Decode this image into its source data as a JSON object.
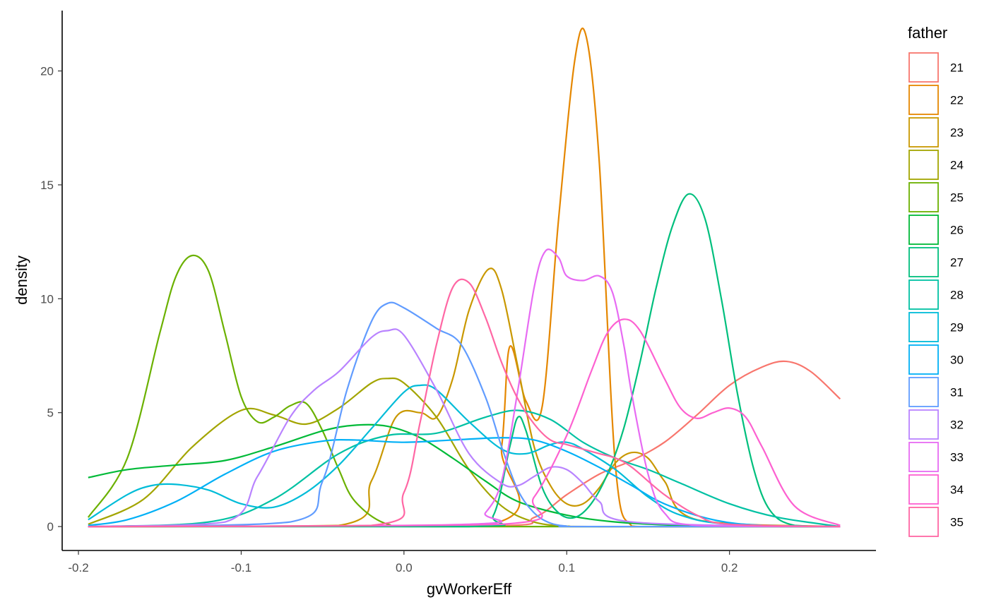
{
  "chart_data": {
    "type": "line",
    "title": "",
    "xlabel": "gvWorkerEff",
    "ylabel": "density",
    "xlim": [
      -0.21,
      0.29
    ],
    "ylim": [
      -1.05,
      22.65
    ],
    "x_ticks": [
      -0.2,
      -0.1,
      0.0,
      0.1,
      0.2
    ],
    "x_tick_labels": [
      "-0.2",
      "-0.1",
      "0.0",
      "0.1",
      "0.2"
    ],
    "y_ticks": [
      0,
      5,
      10,
      15,
      20
    ],
    "y_tick_labels": [
      "0",
      "5",
      "10",
      "15",
      "20"
    ],
    "grid": false,
    "legend": {
      "title": "father",
      "position": "right"
    },
    "series": [
      {
        "name": "21",
        "color": "#F8766D",
        "x": [
          -0.194,
          0.05,
          0.08,
          0.1,
          0.12,
          0.14,
          0.16,
          0.18,
          0.2,
          0.22,
          0.235,
          0.25,
          0.268
        ],
        "y": [
          0,
          0.02,
          0.4,
          1.4,
          2.3,
          2.9,
          3.7,
          4.9,
          6.2,
          7.0,
          7.25,
          6.8,
          5.6
        ]
      },
      {
        "name": "22",
        "color": "#E58700",
        "x": [
          -0.194,
          0.05,
          0.06,
          0.065,
          0.075,
          0.085,
          0.095,
          0.105,
          0.112,
          0.12,
          0.13,
          0.14,
          0.16,
          0.268
        ],
        "y": [
          0,
          0.05,
          3.5,
          7.9,
          5.5,
          5.3,
          13.5,
          20.5,
          21.5,
          16.0,
          2.6,
          0.02,
          0,
          0
        ]
      },
      {
        "name": "23",
        "color": "#C99800",
        "x": [
          -0.194,
          -0.04,
          -0.02,
          -0.005,
          0.01,
          0.02,
          0.03,
          0.04,
          0.052,
          0.06,
          0.07,
          0.08,
          0.09,
          0.1,
          0.11,
          0.12,
          0.13,
          0.14,
          0.15,
          0.16,
          0.18,
          0.268
        ],
        "y": [
          0,
          0.05,
          2.0,
          4.8,
          5.0,
          4.8,
          6.5,
          9.5,
          11.3,
          10.4,
          7.0,
          3.5,
          1.8,
          1.0,
          1.0,
          1.7,
          2.8,
          3.25,
          3.0,
          2.0,
          0.3,
          0
        ]
      },
      {
        "name": "24",
        "color": "#A3A500",
        "x": [
          -0.194,
          -0.16,
          -0.13,
          -0.1,
          -0.08,
          -0.06,
          -0.04,
          -0.02,
          -0.01,
          0,
          0.02,
          0.04,
          0.06,
          0.08,
          0.1,
          0.12,
          0.268
        ],
        "y": [
          0.1,
          1.2,
          3.5,
          5.1,
          4.9,
          4.5,
          5.2,
          6.3,
          6.5,
          6.3,
          4.8,
          2.5,
          0.9,
          0.2,
          0.02,
          0,
          0
        ]
      },
      {
        "name": "25",
        "color": "#6BB100",
        "x": [
          -0.194,
          -0.17,
          -0.15,
          -0.14,
          -0.13,
          -0.12,
          -0.11,
          -0.1,
          -0.09,
          -0.08,
          -0.07,
          -0.06,
          -0.05,
          -0.04,
          -0.03,
          -0.01,
          0.02,
          0.268
        ],
        "y": [
          0.4,
          3.0,
          8.5,
          11.0,
          11.9,
          11.2,
          8.5,
          5.7,
          4.6,
          4.8,
          5.3,
          5.4,
          4.2,
          2.5,
          1.1,
          0.1,
          0,
          0
        ]
      },
      {
        "name": "26",
        "color": "#00BA38",
        "x": [
          -0.194,
          -0.17,
          -0.14,
          -0.11,
          -0.08,
          -0.05,
          -0.03,
          -0.01,
          0.01,
          0.03,
          0.05,
          0.07,
          0.1,
          0.13,
          0.17,
          0.22,
          0.268
        ],
        "y": [
          2.15,
          2.5,
          2.7,
          2.9,
          3.5,
          4.2,
          4.45,
          4.4,
          3.9,
          3.0,
          2.0,
          1.1,
          0.5,
          0.2,
          0.05,
          0.01,
          0
        ]
      },
      {
        "name": "27",
        "color": "#00BF7D",
        "x": [
          -0.194,
          0.04,
          0.055,
          0.065,
          0.07,
          0.075,
          0.085,
          0.095,
          0.105,
          0.115,
          0.125,
          0.135,
          0.145,
          0.155,
          0.165,
          0.175,
          0.185,
          0.195,
          0.205,
          0.215,
          0.225,
          0.24,
          0.268
        ],
        "y": [
          0,
          0,
          0.5,
          3.5,
          4.8,
          4.2,
          1.7,
          0.6,
          0.4,
          1.0,
          2.3,
          4.3,
          7.2,
          10.5,
          13.2,
          14.6,
          13.5,
          10.0,
          5.8,
          2.5,
          0.7,
          0.05,
          0
        ]
      },
      {
        "name": "28",
        "color": "#00C1A3",
        "x": [
          -0.194,
          -0.12,
          -0.08,
          -0.04,
          -0.01,
          0.02,
          0.05,
          0.07,
          0.09,
          0.11,
          0.13,
          0.15,
          0.17,
          0.2,
          0.23,
          0.268
        ],
        "y": [
          0,
          0.2,
          1.2,
          3.2,
          4.0,
          4.1,
          4.8,
          5.1,
          4.7,
          3.7,
          3.0,
          2.5,
          1.9,
          1.0,
          0.4,
          0
        ]
      },
      {
        "name": "29",
        "color": "#00BCD8",
        "x": [
          -0.194,
          -0.17,
          -0.155,
          -0.14,
          -0.12,
          -0.1,
          -0.08,
          -0.06,
          -0.04,
          -0.02,
          0.0,
          0.01,
          0.02,
          0.04,
          0.06,
          0.075,
          0.09,
          0.1,
          0.11,
          0.13,
          0.15,
          0.17,
          0.2,
          0.268
        ],
        "y": [
          0.3,
          1.4,
          1.8,
          1.85,
          1.6,
          1.0,
          0.85,
          1.5,
          2.7,
          4.3,
          5.9,
          6.2,
          6.0,
          4.6,
          3.4,
          3.2,
          3.6,
          3.7,
          3.4,
          2.5,
          1.3,
          0.5,
          0.1,
          0
        ]
      },
      {
        "name": "30",
        "color": "#00B0F6",
        "x": [
          -0.194,
          -0.17,
          -0.14,
          -0.11,
          -0.08,
          -0.05,
          -0.03,
          0.0,
          0.03,
          0.06,
          0.08,
          0.1,
          0.12,
          0.14,
          0.16,
          0.19,
          0.22,
          0.268
        ],
        "y": [
          0.05,
          0.3,
          1.1,
          2.3,
          3.3,
          3.75,
          3.8,
          3.7,
          3.8,
          3.9,
          3.8,
          3.3,
          2.6,
          1.8,
          1.0,
          0.3,
          0.05,
          0
        ]
      },
      {
        "name": "31",
        "color": "#619CFF",
        "x": [
          -0.194,
          -0.07,
          -0.05,
          -0.035,
          -0.02,
          -0.01,
          0.0,
          0.02,
          0.035,
          0.05,
          0.06,
          0.07,
          0.08,
          0.09,
          0.1,
          0.11,
          0.268
        ],
        "y": [
          0,
          0.2,
          2.0,
          6.0,
          9.0,
          9.8,
          9.6,
          8.7,
          8.0,
          5.7,
          3.5,
          1.6,
          0.6,
          0.15,
          0.02,
          0,
          0
        ]
      },
      {
        "name": "32",
        "color": "#B983FF",
        "x": [
          -0.194,
          -0.11,
          -0.09,
          -0.07,
          -0.055,
          -0.04,
          -0.02,
          -0.01,
          0.0,
          0.02,
          0.04,
          0.06,
          0.07,
          0.08,
          0.09,
          0.1,
          0.11,
          0.12,
          0.14,
          0.268
        ],
        "y": [
          0,
          0.2,
          2.2,
          4.8,
          6.0,
          6.8,
          8.3,
          8.6,
          8.4,
          6.0,
          3.2,
          1.9,
          1.8,
          2.2,
          2.6,
          2.5,
          1.9,
          1.1,
          0.2,
          0
        ]
      },
      {
        "name": "33",
        "color": "#E76BF3",
        "x": [
          -0.194,
          0.04,
          0.05,
          0.06,
          0.07,
          0.08,
          0.087,
          0.095,
          0.1,
          0.11,
          0.12,
          0.128,
          0.135,
          0.14,
          0.15,
          0.16,
          0.18,
          0.268
        ],
        "y": [
          0,
          0.1,
          0.6,
          2.0,
          6.0,
          10.5,
          12.1,
          11.8,
          11.0,
          10.8,
          11.0,
          10.3,
          8.0,
          5.8,
          2.3,
          0.6,
          0.05,
          0
        ]
      },
      {
        "name": "34",
        "color": "#FD61D1",
        "x": [
          -0.194,
          0.06,
          0.08,
          0.1,
          0.115,
          0.125,
          0.135,
          0.145,
          0.16,
          0.17,
          0.18,
          0.19,
          0.2,
          0.21,
          0.22,
          0.24,
          0.268
        ],
        "y": [
          0,
          0.1,
          1.3,
          4.0,
          6.8,
          8.5,
          9.1,
          8.6,
          6.5,
          5.2,
          4.75,
          5.0,
          5.2,
          4.8,
          3.5,
          0.9,
          0.05
        ]
      },
      {
        "name": "35",
        "color": "#FF67A4",
        "x": [
          -0.194,
          -0.02,
          0.0,
          0.01,
          0.02,
          0.03,
          0.04,
          0.05,
          0.06,
          0.07,
          0.08,
          0.09,
          0.1,
          0.11,
          0.12,
          0.13,
          0.14,
          0.16,
          0.18,
          0.2,
          0.268
        ],
        "y": [
          0,
          0.05,
          1.5,
          4.6,
          8.0,
          10.5,
          10.7,
          9.2,
          7.2,
          5.6,
          4.5,
          3.8,
          3.6,
          3.4,
          3.2,
          3.0,
          2.6,
          1.4,
          0.5,
          0.1,
          0
        ]
      }
    ]
  }
}
